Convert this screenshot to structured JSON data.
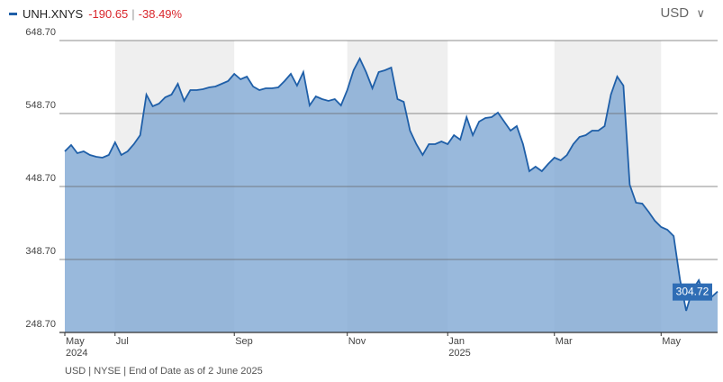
{
  "chart_data": {
    "type": "area",
    "series": [
      {
        "name": "UNH.XNYS",
        "color": "#1f5fa8",
        "values": [
          496.9,
          505.5,
          494.4,
          496.9,
          491.9,
          489.4,
          488.2,
          491.9,
          509.2,
          491.9,
          496.9,
          506.7,
          519.1,
          574.6,
          558.6,
          562.3,
          570.9,
          574.6,
          589.4,
          566.0,
          580.8,
          580.8,
          582.0,
          584.5,
          585.7,
          589.4,
          593.2,
          603.0,
          595.6,
          599.3,
          585.7,
          580.8,
          583.3,
          583.3,
          584.5,
          593.2,
          603.0,
          587.0,
          605.5,
          559.8,
          572.2,
          568.5,
          566.0,
          568.5,
          559.8,
          580.8,
          608.0,
          624.0,
          605.5,
          583.3,
          605.5,
          608.0,
          611.7,
          568.5,
          564.8,
          525.3,
          506.7,
          491.9,
          506.7,
          506.7,
          510.4,
          506.7,
          519.1,
          512.9,
          543.8,
          519.1,
          537.6,
          542.5,
          543.8,
          549.9,
          537.6,
          525.3,
          531.4,
          506.7,
          469.7,
          475.9,
          469.7,
          479.6,
          488.2,
          484.5,
          491.9,
          506.7,
          516.6,
          519.1,
          525.3,
          525.3,
          531.4,
          574.6,
          599.3,
          587.0,
          451.2,
          426.5,
          425.2,
          414.1,
          401.8,
          393.1,
          389.4,
          380.8,
          321.5,
          278.3,
          306.7,
          320.3,
          296.8,
          296.8,
          304.72
        ]
      }
    ],
    "categories": [
      "May",
      null,
      null,
      null,
      null,
      null,
      null,
      null,
      "Jul",
      null,
      null,
      null,
      null,
      null,
      null,
      null,
      null,
      null,
      null,
      null,
      null,
      null,
      null,
      null,
      null,
      null,
      null,
      "Sep",
      null,
      null,
      null,
      null,
      null,
      null,
      null,
      null,
      null,
      null,
      null,
      null,
      null,
      null,
      null,
      null,
      null,
      "Nov",
      null,
      null,
      null,
      null,
      null,
      null,
      null,
      null,
      null,
      null,
      null,
      null,
      null,
      null,
      null,
      "Jan",
      null,
      null,
      null,
      null,
      null,
      null,
      null,
      null,
      null,
      null,
      null,
      null,
      null,
      null,
      null,
      null,
      "Mar",
      null,
      null,
      null,
      null,
      null,
      null,
      null,
      null,
      null,
      null,
      null,
      null,
      null,
      null,
      null,
      null,
      "May",
      null,
      null,
      null,
      null,
      null,
      null,
      null,
      null,
      null
    ],
    "years": [
      "2024",
      "2025"
    ],
    "change": "-190.65",
    "change_pct": "-38.49%",
    "currency": "USD",
    "footnote": "USD | NYSE | End of Date as of 2 June 2025",
    "ylim": [
      248.7,
      648.7
    ],
    "yticks": [
      {
        "value": 248.7,
        "label": "248.70"
      },
      {
        "value": 348.7,
        "label": "348.70"
      },
      {
        "value": 448.7,
        "label": "448.70"
      },
      {
        "value": 548.7,
        "label": "548.70"
      },
      {
        "value": 648.7,
        "label": "648.70"
      }
    ],
    "grid": true
  }
}
